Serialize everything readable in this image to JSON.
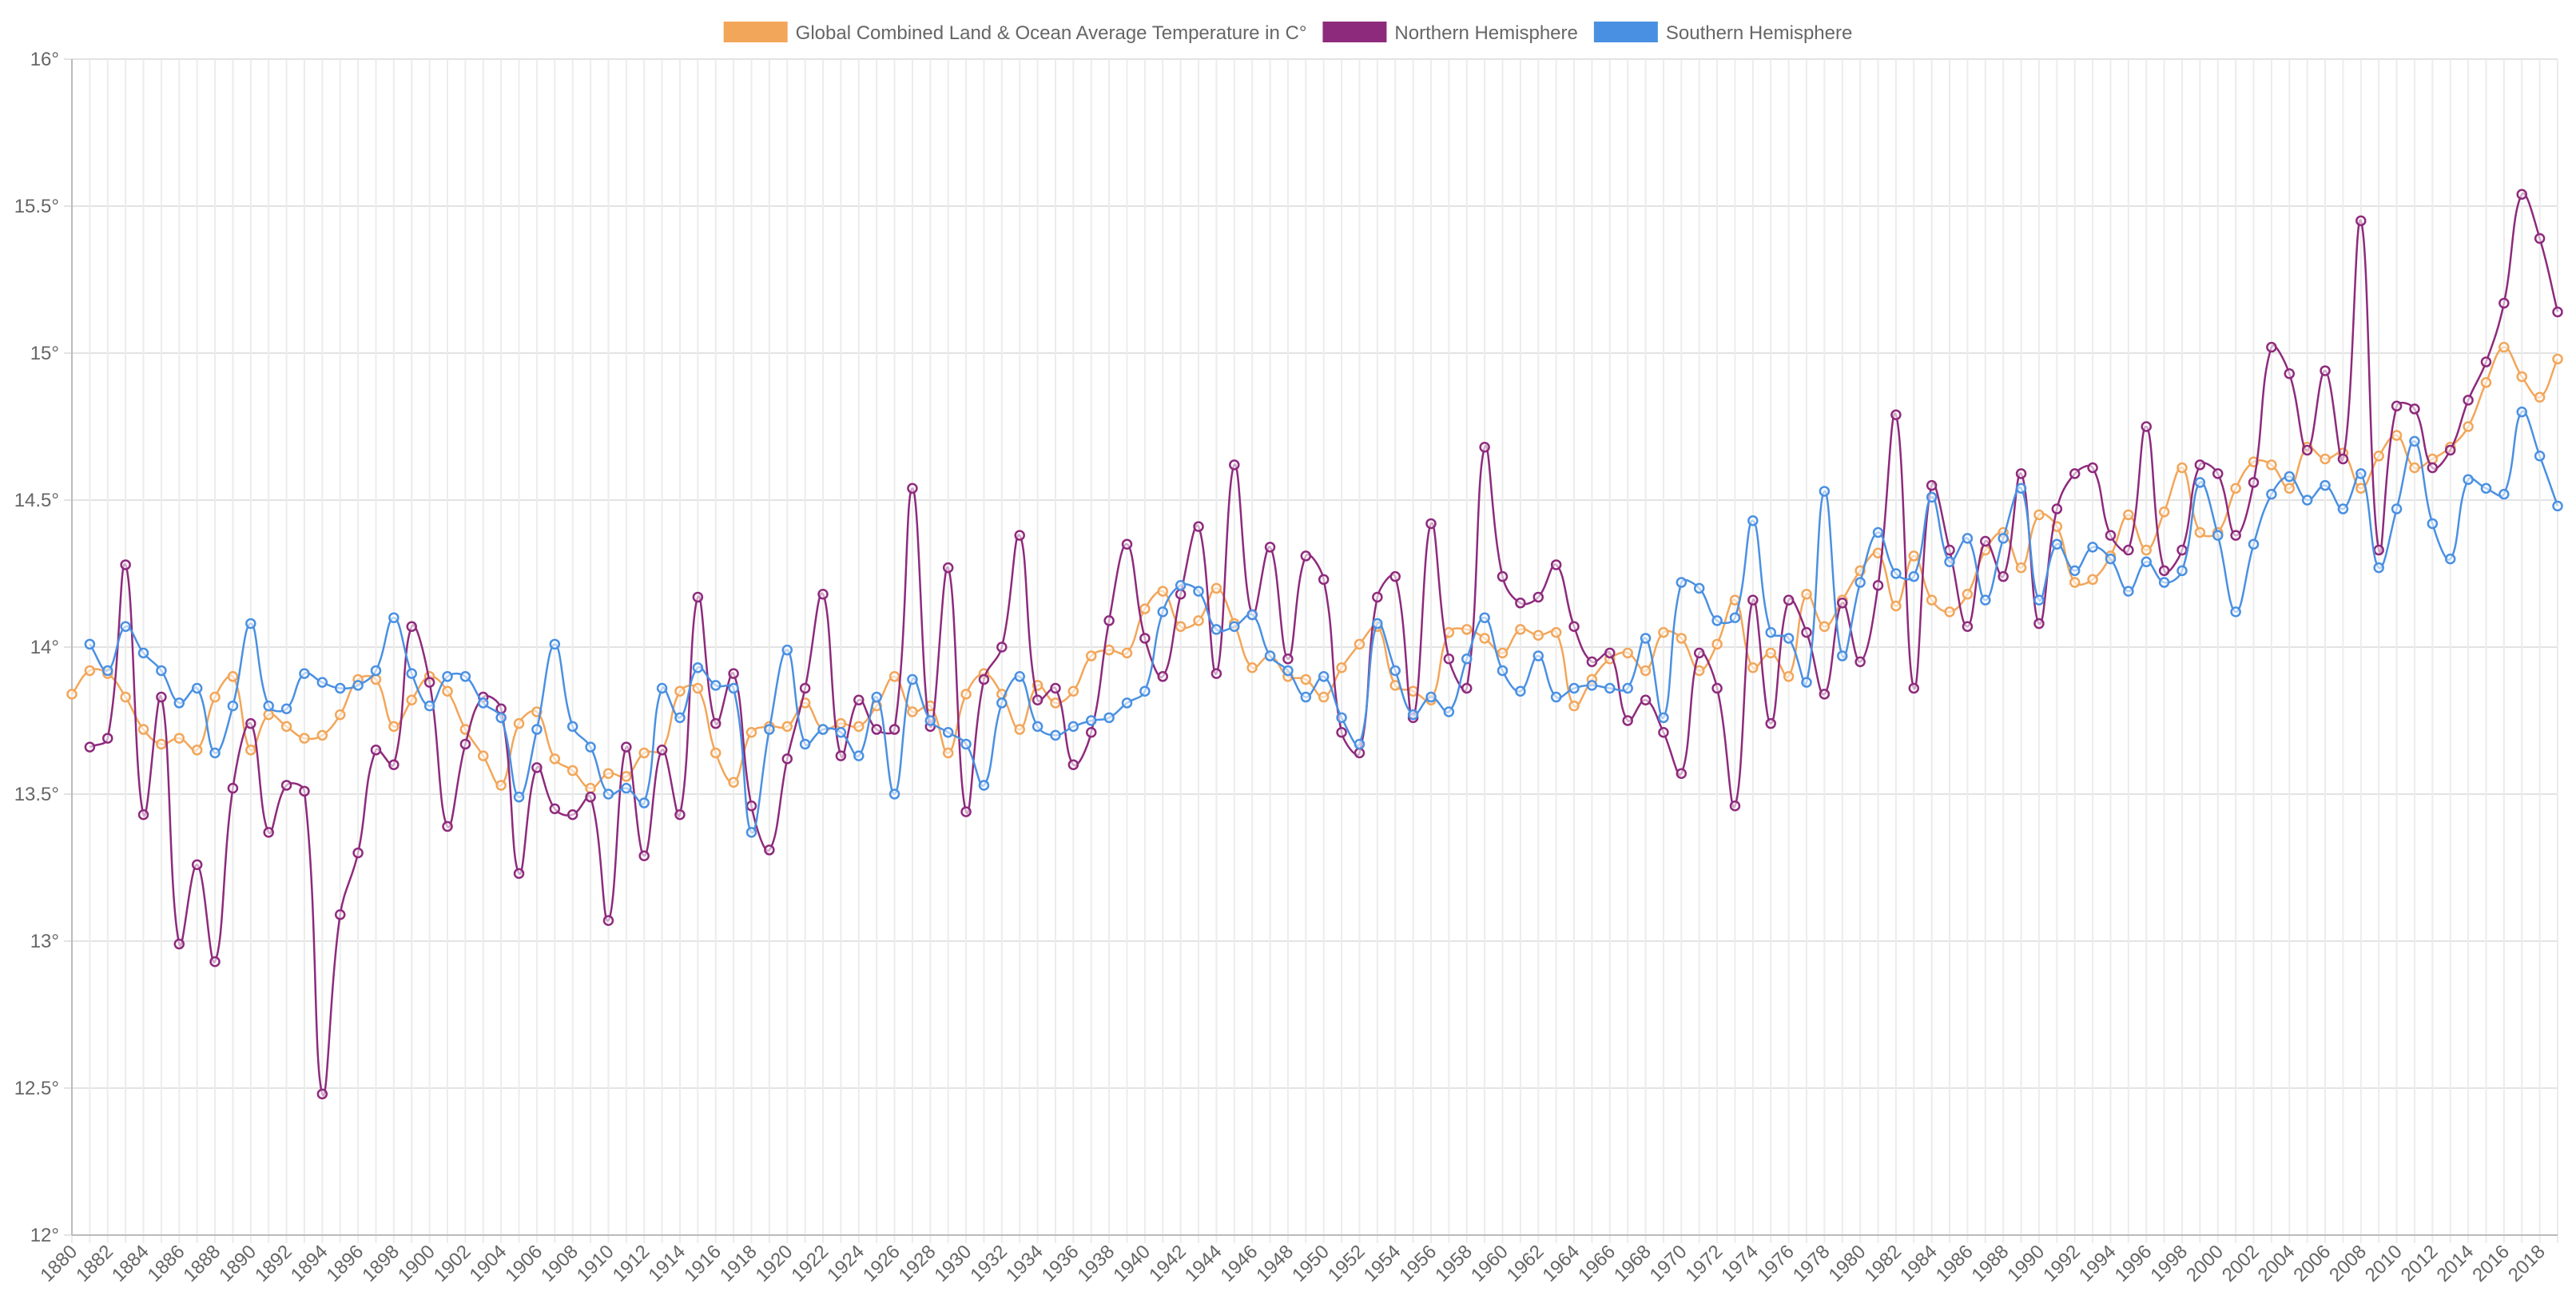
{
  "chart_data": {
    "type": "line",
    "categories": [
      "1880",
      null,
      "1882",
      null,
      "1884",
      null,
      "1886",
      null,
      "1888",
      null,
      "1890",
      null,
      "1892",
      null,
      "1894",
      null,
      "1896",
      null,
      "1898",
      null,
      "1900",
      null,
      "1902",
      null,
      "1904",
      null,
      "1906",
      null,
      "1908",
      null,
      "1910",
      null,
      "1912",
      null,
      "1914",
      null,
      "1916",
      null,
      "1918",
      null,
      "1920",
      null,
      "1922",
      null,
      "1924",
      null,
      "1926",
      null,
      "1928",
      null,
      "1930",
      null,
      "1932",
      null,
      "1934",
      null,
      "1936",
      null,
      "1938",
      null,
      "1940",
      null,
      "1942",
      null,
      "1944",
      null,
      "1946",
      null,
      "1948",
      null,
      "1950",
      null,
      "1952",
      null,
      "1954",
      null,
      "1956",
      null,
      "1958",
      null,
      "1960",
      null,
      "1962",
      null,
      "1964",
      null,
      "1966",
      null,
      "1968",
      null,
      "1970",
      null,
      "1972",
      null,
      "1974",
      null,
      "1976",
      null,
      "1978",
      null,
      "1980",
      null,
      "1982",
      null,
      "1984",
      null,
      "1986",
      null,
      "1988",
      null,
      "1990",
      null,
      "1992",
      null,
      "1994",
      null,
      "1996",
      null,
      "1998",
      null,
      "2000",
      null,
      "2002",
      null,
      "2004",
      null,
      "2006",
      null,
      "2008",
      null,
      "2010",
      null,
      "2012",
      null,
      "2014",
      null,
      "2016",
      null,
      "2018",
      null
    ],
    "series": [
      {
        "name": "Global Combined Land & Ocean Average Temperature in C°",
        "color": "#f2a65a",
        "values": [
          13.84,
          13.92,
          13.91,
          13.83,
          13.72,
          13.67,
          13.69,
          13.65,
          13.83,
          13.9,
          13.65,
          13.77,
          13.73,
          13.69,
          13.7,
          13.77,
          13.89,
          13.89,
          13.73,
          13.82,
          13.9,
          13.85,
          13.72,
          13.63,
          13.53,
          13.74,
          13.78,
          13.62,
          13.58,
          13.52,
          13.57,
          13.56,
          13.64,
          13.65,
          13.85,
          13.86,
          13.64,
          13.54,
          13.71,
          13.73,
          13.73,
          13.81,
          13.72,
          13.74,
          13.73,
          13.8,
          13.9,
          13.78,
          13.8,
          13.64,
          13.84,
          13.91,
          13.84,
          13.72,
          13.87,
          13.81,
          13.85,
          13.97,
          13.99,
          13.98,
          14.13,
          14.19,
          14.07,
          14.09,
          14.2,
          14.08,
          13.93,
          13.97,
          13.9,
          13.89,
          13.83,
          13.93,
          14.01,
          14.07,
          13.87,
          13.85,
          13.82,
          14.05,
          14.06,
          14.03,
          13.98,
          14.06,
          14.04,
          14.05,
          13.8,
          13.89,
          13.96,
          13.98,
          13.92,
          14.05,
          14.03,
          13.92,
          14.01,
          14.16,
          13.93,
          13.98,
          13.9,
          14.18,
          14.07,
          14.16,
          14.26,
          14.32,
          14.14,
          14.31,
          14.16,
          14.12,
          14.18,
          14.33,
          14.39,
          14.27,
          14.45,
          14.41,
          14.22,
          14.23,
          14.31,
          14.45,
          14.33,
          14.46,
          14.61,
          14.39,
          14.39,
          14.54,
          14.63,
          14.62,
          14.54,
          14.68,
          14.64,
          14.66,
          14.54,
          14.65,
          14.72,
          14.61,
          14.64,
          14.68,
          14.75,
          14.9,
          15.02,
          14.92,
          14.85,
          14.98
        ]
      },
      {
        "name": "Northern Hemisphere",
        "color": "#8e2a7c",
        "values": [
          null,
          13.66,
          13.69,
          14.28,
          13.43,
          13.83,
          12.99,
          13.26,
          12.93,
          13.52,
          13.74,
          13.37,
          13.53,
          13.51,
          12.48,
          13.09,
          13.3,
          13.65,
          13.6,
          14.07,
          13.88,
          13.39,
          13.67,
          13.83,
          13.79,
          13.23,
          13.59,
          13.45,
          13.43,
          13.49,
          13.07,
          13.66,
          13.29,
          13.65,
          13.43,
          14.17,
          13.74,
          13.91,
          13.46,
          13.31,
          13.62,
          13.86,
          14.18,
          13.63,
          13.82,
          13.72,
          13.72,
          14.54,
          13.73,
          14.27,
          13.44,
          13.89,
          14.0,
          14.38,
          13.82,
          13.86,
          13.6,
          13.71,
          14.09,
          14.35,
          14.03,
          13.9,
          14.18,
          14.41,
          13.91,
          14.62,
          14.11,
          14.34,
          13.96,
          14.31,
          14.23,
          13.71,
          13.64,
          14.17,
          14.24,
          13.76,
          14.42,
          13.96,
          13.86,
          14.68,
          14.24,
          14.15,
          14.17,
          14.28,
          14.07,
          13.95,
          13.98,
          13.75,
          13.82,
          13.71,
          13.57,
          13.98,
          13.86,
          13.46,
          14.16,
          13.74,
          14.16,
          14.05,
          13.84,
          14.15,
          13.95,
          14.21,
          14.79,
          13.86,
          14.55,
          14.33,
          14.07,
          14.36,
          14.24,
          14.59,
          14.08,
          14.47,
          14.59,
          14.61,
          14.38,
          14.33,
          14.75,
          14.26,
          14.33,
          14.62,
          14.59,
          14.38,
          14.56,
          15.02,
          14.93,
          14.67,
          14.94,
          14.64,
          15.45,
          14.33,
          14.82,
          14.81,
          14.61,
          14.67,
          14.84,
          14.97,
          15.17,
          15.54,
          15.39,
          15.14
        ]
      },
      {
        "name": "Southern Hemisphere",
        "color": "#4a90e2",
        "values": [
          null,
          14.01,
          13.92,
          14.07,
          13.98,
          13.92,
          13.81,
          13.86,
          13.64,
          13.8,
          14.08,
          13.8,
          13.79,
          13.91,
          13.88,
          13.86,
          13.87,
          13.92,
          14.1,
          13.91,
          13.8,
          13.9,
          13.9,
          13.81,
          13.76,
          13.49,
          13.72,
          14.01,
          13.73,
          13.66,
          13.5,
          13.52,
          13.47,
          13.86,
          13.76,
          13.93,
          13.87,
          13.86,
          13.37,
          13.72,
          13.99,
          13.67,
          13.72,
          13.71,
          13.63,
          13.83,
          13.5,
          13.89,
          13.75,
          13.71,
          13.67,
          13.53,
          13.81,
          13.9,
          13.73,
          13.7,
          13.73,
          13.75,
          13.76,
          13.81,
          13.85,
          14.12,
          14.21,
          14.19,
          14.06,
          14.07,
          14.11,
          13.97,
          13.92,
          13.83,
          13.9,
          13.76,
          13.67,
          14.08,
          13.92,
          13.77,
          13.83,
          13.78,
          13.96,
          14.1,
          13.92,
          13.85,
          13.97,
          13.83,
          13.86,
          13.87,
          13.86,
          13.86,
          14.03,
          13.76,
          14.22,
          14.2,
          14.09,
          14.1,
          14.43,
          14.05,
          14.03,
          13.88,
          14.53,
          13.97,
          14.22,
          14.39,
          14.25,
          14.24,
          14.51,
          14.29,
          14.37,
          14.16,
          14.37,
          14.54,
          14.16,
          14.35,
          14.26,
          14.34,
          14.3,
          14.19,
          14.29,
          14.22,
          14.26,
          14.56,
          14.38,
          14.12,
          14.35,
          14.52,
          14.58,
          14.5,
          14.55,
          14.47,
          14.59,
          14.27,
          14.47,
          14.7,
          14.42,
          14.3,
          14.57,
          14.54,
          14.52,
          14.8,
          14.65,
          14.48
        ]
      }
    ],
    "ylim": [
      12,
      16
    ],
    "yticks": [
      {
        "value": 12,
        "label": "12°"
      },
      {
        "value": 12.5,
        "label": "12.5°"
      },
      {
        "value": 13,
        "label": "13°"
      },
      {
        "value": 13.5,
        "label": "13.5°"
      },
      {
        "value": 14,
        "label": "14°"
      },
      {
        "value": 14.5,
        "label": "14.5°"
      },
      {
        "value": 15,
        "label": "15°"
      },
      {
        "value": 15.5,
        "label": "15.5°"
      },
      {
        "value": 16,
        "label": "16°"
      }
    ],
    "grid": true,
    "legend": "top"
  }
}
